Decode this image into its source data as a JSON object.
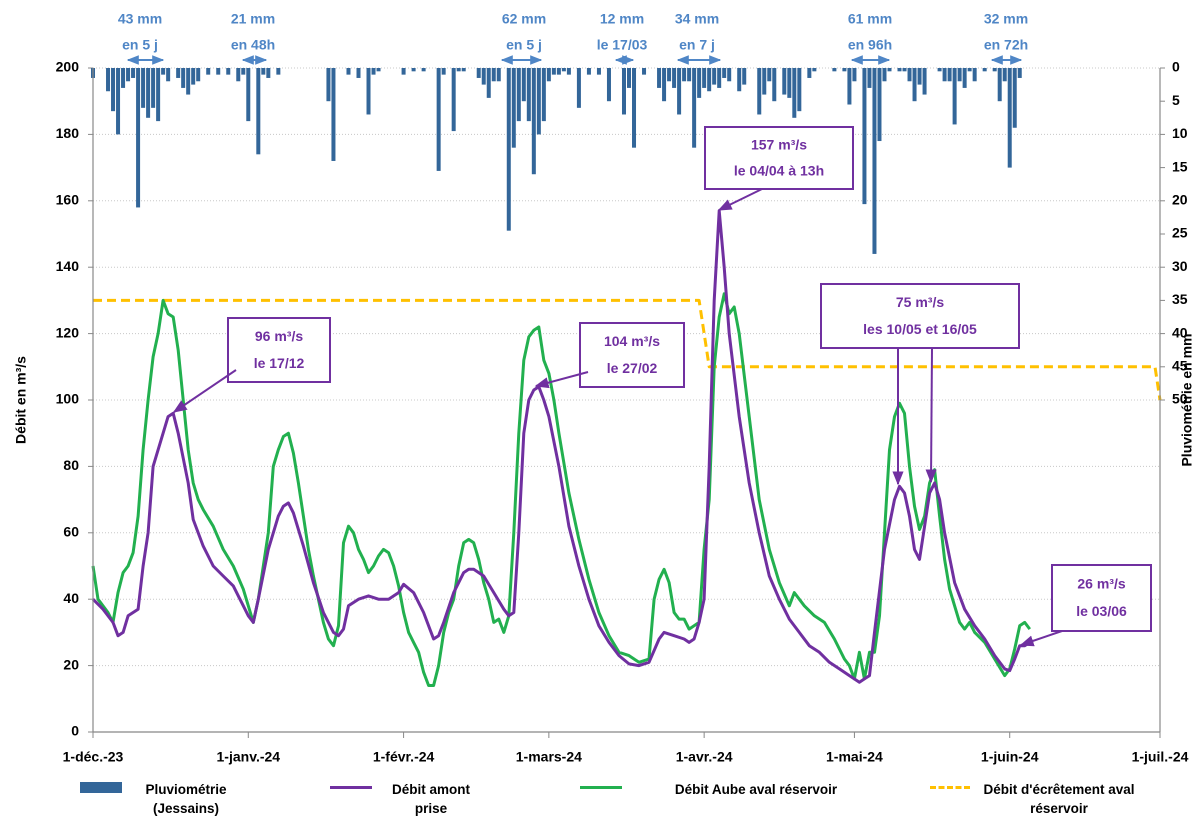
{
  "chart_data": {
    "type": "line",
    "y_label": "Débit en m³/s",
    "y2_label": "Pluviométrie en mm",
    "xlim": [
      0,
      213
    ],
    "xticks": [
      {
        "value": 0,
        "label": "1-déc.-23"
      },
      {
        "value": 31,
        "label": "1-janv.-24"
      },
      {
        "value": 62,
        "label": "1-févr.-24"
      },
      {
        "value": 91,
        "label": "1-mars-24"
      },
      {
        "value": 122,
        "label": "1-avr.-24"
      },
      {
        "value": 152,
        "label": "1-mai-24"
      },
      {
        "value": 183,
        "label": "1-juin-24"
      },
      {
        "value": 213,
        "label": "1-juil.-24"
      }
    ],
    "ylim": [
      0,
      200
    ],
    "yticks": [
      0,
      20,
      40,
      60,
      80,
      100,
      120,
      140,
      160,
      180,
      200
    ],
    "y2lim": [
      100,
      0
    ],
    "y2ticks": [
      0,
      5,
      10,
      15,
      20,
      25,
      30,
      35,
      40,
      45,
      50
    ],
    "grid": true,
    "series": [
      {
        "name": "Pluviométrie (Jessains)",
        "type": "bar",
        "axis": "y2",
        "color": "#336699",
        "x": [
          0,
          3,
          4,
          5,
          6,
          7,
          8,
          9,
          10,
          11,
          12,
          13,
          14,
          15,
          17,
          18,
          19,
          20,
          21,
          23,
          25,
          27,
          29,
          30,
          31,
          33,
          34,
          35,
          37,
          47,
          48,
          51,
          53,
          55,
          56,
          57,
          62,
          64,
          66,
          69,
          70,
          72,
          73,
          74,
          77,
          78,
          79,
          80,
          81,
          83,
          84,
          85,
          86,
          87,
          88,
          89,
          90,
          91,
          92,
          93,
          94,
          95,
          97,
          99,
          101,
          103,
          106,
          107,
          108,
          110,
          113,
          114,
          115,
          116,
          117,
          118,
          119,
          120,
          121,
          122,
          123,
          124,
          125,
          126,
          127,
          129,
          130,
          133,
          134,
          135,
          136,
          138,
          139,
          140,
          141,
          143,
          144,
          148,
          150,
          151,
          152,
          154,
          155,
          156,
          157,
          158,
          159,
          161,
          162,
          163,
          164,
          165,
          166,
          169,
          170,
          171,
          172,
          173,
          174,
          175,
          176,
          178,
          180,
          181,
          182,
          183,
          184,
          185
        ],
        "values": [
          1.5,
          3.5,
          6.5,
          10,
          3,
          2,
          1.5,
          21,
          6,
          7.5,
          6,
          8,
          1,
          2,
          1.5,
          3,
          4,
          2.5,
          2,
          1,
          1,
          1,
          2,
          1,
          8,
          13,
          1,
          1.5,
          1,
          5,
          14,
          1,
          1.5,
          7,
          1,
          0.5,
          1,
          0.5,
          0.5,
          15.5,
          1,
          9.5,
          0.5,
          0.5,
          1.5,
          2.5,
          4.5,
          2,
          2,
          24.5,
          12,
          8,
          5,
          8,
          16,
          10,
          8,
          2,
          1,
          1,
          0.5,
          1,
          6,
          1,
          1,
          5,
          7,
          3,
          12,
          1,
          3,
          5,
          2,
          3,
          7,
          2,
          2,
          12,
          4.5,
          3,
          3.5,
          2.5,
          3,
          1.5,
          2,
          3.5,
          2.5,
          7,
          4,
          2,
          5,
          4,
          4.5,
          7.5,
          6.5,
          1.5,
          0.5,
          0.5,
          0.5,
          5.5,
          2,
          20.5,
          3,
          28,
          11,
          2,
          0.5,
          0.5,
          0.5,
          2,
          5,
          2.5,
          4,
          0.5,
          2,
          2,
          8.5,
          2,
          3,
          0.5,
          2,
          0.5,
          0.5,
          5,
          2,
          15,
          9,
          1.5
        ]
      },
      {
        "name": "Débit amont prise",
        "type": "line",
        "color": "#7030a0",
        "x": [
          0,
          2,
          4,
          5,
          6,
          7,
          9,
          10,
          11,
          12,
          14,
          15,
          16,
          17,
          19,
          20,
          22,
          24,
          26,
          28,
          29,
          30,
          31,
          32,
          33,
          35,
          37,
          38,
          39,
          40,
          42,
          44,
          46,
          47,
          48,
          49,
          50,
          51,
          53,
          55,
          57,
          59,
          61,
          62,
          64,
          66,
          68,
          69,
          70,
          72,
          74,
          75,
          76,
          78,
          80,
          82,
          83,
          84,
          85,
          86,
          87,
          88,
          89,
          90,
          91,
          93,
          95,
          97,
          99,
          101,
          103,
          105,
          107,
          109,
          111,
          113,
          114,
          116,
          118,
          119,
          120,
          121,
          122,
          123,
          124,
          125,
          126,
          127,
          129,
          131,
          133,
          135,
          137,
          139,
          141,
          143,
          145,
          147,
          149,
          151,
          153,
          154,
          155,
          156,
          158,
          160,
          161,
          162,
          163,
          164,
          165,
          166,
          167,
          168,
          169,
          170,
          172,
          174,
          176,
          178,
          180,
          182,
          183,
          184,
          185,
          186,
          187
        ],
        "values": [
          40,
          37,
          33,
          29,
          30,
          35,
          37,
          50,
          60,
          80,
          90,
          95,
          96,
          90,
          75,
          64,
          56,
          50,
          47,
          44,
          41,
          38,
          35,
          33,
          40,
          55,
          65,
          68,
          69,
          66,
          56,
          45,
          36,
          33,
          30,
          29,
          31,
          38,
          40,
          41,
          40,
          40,
          42,
          44.5,
          42,
          36,
          28,
          29,
          33,
          42,
          48,
          49,
          49,
          47,
          42,
          37,
          35,
          36,
          60,
          90,
          100,
          103,
          104,
          100,
          95,
          80,
          62,
          50,
          40,
          32,
          27,
          23,
          20.5,
          20,
          21,
          28,
          30,
          29,
          28,
          27,
          28,
          33,
          40,
          80,
          130,
          157,
          140,
          120,
          95,
          75,
          60,
          47,
          40,
          34,
          30,
          26,
          24,
          21,
          19,
          17,
          15,
          16,
          17,
          30,
          55,
          70,
          74,
          72,
          65,
          55,
          52,
          62,
          72,
          75,
          70,
          60,
          45,
          37,
          32,
          28,
          23,
          19,
          18.5,
          22,
          26,
          26,
          27
        ]
      },
      {
        "name": "Débit Aube aval réservoir",
        "type": "line",
        "color": "#22b04f",
        "x": [
          0,
          1,
          3,
          4,
          5,
          6,
          7,
          8,
          9,
          10,
          11,
          12,
          13,
          14,
          15,
          16,
          17,
          18,
          19,
          20,
          21,
          22,
          24,
          26,
          28,
          30,
          31,
          32,
          33,
          35,
          36,
          37,
          38,
          39,
          40,
          41,
          42,
          43,
          44,
          45,
          46,
          47,
          48,
          49,
          50,
          51,
          52,
          53,
          54,
          55,
          56,
          57,
          58,
          59,
          60,
          61,
          62,
          63,
          64,
          65,
          66,
          67,
          68,
          69,
          70,
          71,
          72,
          73,
          74,
          75,
          76,
          77,
          78,
          79,
          80,
          81,
          82,
          83,
          84,
          85,
          86,
          87,
          88,
          89,
          90,
          91,
          92,
          93,
          95,
          97,
          99,
          101,
          103,
          105,
          107,
          109,
          111,
          112,
          113,
          114,
          115,
          116,
          117,
          118,
          119,
          120,
          121,
          122,
          123,
          124,
          125,
          126,
          127,
          128,
          129,
          131,
          133,
          135,
          137,
          139,
          140,
          142,
          144,
          146,
          148,
          150,
          151,
          152,
          153,
          154,
          155,
          156,
          157,
          158,
          159,
          160,
          161,
          162,
          163,
          164,
          165,
          166,
          167,
          168,
          169,
          170,
          171,
          172,
          173,
          174,
          175,
          176,
          178,
          180,
          182,
          183,
          184,
          185,
          186,
          187
        ],
        "values": [
          50,
          40,
          36,
          33,
          42,
          48,
          50,
          54,
          65,
          85,
          100,
          113,
          120,
          130,
          126,
          125,
          115,
          100,
          85,
          75,
          70,
          67,
          62,
          55,
          50,
          43,
          38,
          33,
          40,
          60,
          80,
          85,
          89,
          90,
          84,
          75,
          65,
          55,
          47,
          40,
          33,
          28,
          26,
          32,
          57,
          62,
          60,
          55,
          52,
          48,
          50,
          53,
          55,
          54,
          50,
          44,
          36,
          30,
          27,
          24,
          18,
          14,
          14,
          20,
          30,
          36,
          40,
          50,
          57,
          58,
          57,
          52,
          45,
          40,
          33,
          34,
          30,
          35,
          60,
          90,
          112,
          119,
          121,
          122,
          112,
          108,
          100,
          90,
          72,
          58,
          46,
          36,
          29,
          24,
          23,
          21,
          22,
          40,
          46,
          49,
          45,
          36,
          34,
          34,
          31,
          32,
          33,
          55,
          70,
          110,
          125,
          132,
          126,
          128,
          120,
          95,
          70,
          55,
          45,
          38,
          42,
          38,
          35,
          33,
          28,
          22,
          20,
          16,
          24,
          16,
          24,
          24,
          35,
          60,
          85,
          95,
          99,
          96,
          80,
          68,
          61,
          65,
          75,
          79,
          65,
          52,
          43,
          38,
          33,
          31,
          33,
          30,
          27,
          22,
          17,
          19,
          25,
          32,
          33,
          31
        ]
      },
      {
        "name": "Débit d'écrêtement aval réservoir",
        "type": "line",
        "dashed": true,
        "color": "#ffc000",
        "x": [
          0,
          121,
          123,
          212,
          213
        ],
        "values": [
          130,
          130,
          110,
          110,
          100
        ]
      }
    ],
    "annotations": [
      {
        "lines": [
          "43 mm",
          "en 5 j"
        ]
      },
      {
        "lines": [
          "21 mm",
          "en 48h"
        ]
      },
      {
        "lines": [
          "62 mm",
          "en 5 j"
        ]
      },
      {
        "lines": [
          "12 mm",
          "le 17/03"
        ]
      },
      {
        "lines": [
          "34 mm",
          "en 7 j"
        ]
      },
      {
        "lines": [
          "61 mm",
          "en 96h"
        ]
      },
      {
        "lines": [
          "32 mm",
          "en 72h"
        ]
      }
    ],
    "callouts": [
      {
        "lines": [
          "96 m³/s",
          "le 17/12"
        ]
      },
      {
        "lines": [
          "104 m³/s",
          "le 27/02"
        ]
      },
      {
        "lines": [
          "157 m³/s",
          "le 04/04 à 13h"
        ]
      },
      {
        "lines": [
          "75 m³/s",
          "les 10/05 et 16/05"
        ]
      },
      {
        "lines": [
          "26 m³/s",
          "le 03/06"
        ]
      }
    ]
  }
}
